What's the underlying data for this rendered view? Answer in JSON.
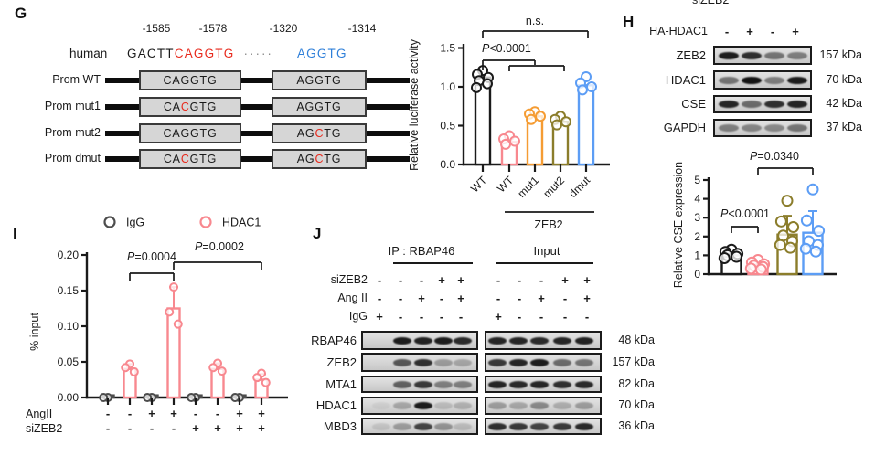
{
  "figure": {
    "panel_g": {
      "label": "G",
      "diagram": {
        "positions": [
          "-1585",
          "-1578",
          "-1320",
          "-1314"
        ],
        "species_label": "human",
        "sequence_segments": [
          {
            "text": "GACTT",
            "color": "#1a1a1a"
          },
          {
            "text": "CAGGTG",
            "color": "#e8291c"
          },
          {
            "text": "·····",
            "color": "#8a8a8a"
          },
          {
            "text": "AGGTG",
            "color": "#2e7fd9"
          }
        ],
        "mut_color": "#e8291c",
        "rows": [
          {
            "label": "Prom WT",
            "box1": [
              {
                "t": "CAGGTG",
                "red": false
              }
            ],
            "box2": [
              {
                "t": "AGGTG",
                "red": false
              }
            ]
          },
          {
            "label": "Prom mut1",
            "box1": [
              {
                "t": "CA",
                "red": false
              },
              {
                "t": "C",
                "red": true
              },
              {
                "t": "GTG",
                "red": false
              }
            ],
            "box2": [
              {
                "t": "AGGTG",
                "red": false
              }
            ]
          },
          {
            "label": "Prom mut2",
            "box1": [
              {
                "t": "CAGGTG",
                "red": false
              }
            ],
            "box2": [
              {
                "t": "AG",
                "red": false
              },
              {
                "t": "C",
                "red": true
              },
              {
                "t": "TG",
                "red": false
              }
            ]
          },
          {
            "label": "Prom dmut",
            "box1": [
              {
                "t": "CA",
                "red": false
              },
              {
                "t": "C",
                "red": true
              },
              {
                "t": "GTG",
                "red": false
              }
            ],
            "box2": [
              {
                "t": "AG",
                "red": false
              },
              {
                "t": "C",
                "red": true
              },
              {
                "t": "TG",
                "red": false
              }
            ]
          }
        ]
      }
    },
    "panel_h": {
      "label": "H",
      "clipped_top_label": "siZEB2",
      "condition_label": "HA-HDAC1",
      "condition_signs": [
        "-",
        "+",
        "-",
        "+"
      ],
      "blot_rows": [
        {
          "protein": "ZEB2",
          "kda": "157 kDa",
          "bands": [
            0.95,
            0.85,
            0.5,
            0.45
          ]
        },
        {
          "protein": "HDAC1",
          "kda": "70 kDa",
          "bands": [
            0.5,
            1.0,
            0.45,
            0.95
          ]
        },
        {
          "protein": "CSE",
          "kda": "42 kDa",
          "bands": [
            0.9,
            0.55,
            0.85,
            0.9
          ]
        },
        {
          "protein": "GAPDH",
          "kda": "37 kDa",
          "bands": [
            0.45,
            0.42,
            0.4,
            0.5
          ]
        }
      ]
    },
    "panel_i": {
      "label": "I"
    },
    "panel_j": {
      "label": "J",
      "ip_header": "IP : RBAP46",
      "input_header": "Input",
      "sign_rows": [
        {
          "label": "siZEB2",
          "ip": [
            "-",
            "-",
            "-",
            "+",
            "+"
          ],
          "input": [
            "-",
            "-",
            "-",
            "+",
            "+"
          ]
        },
        {
          "label": "Ang II",
          "ip": [
            "-",
            "-",
            "+",
            "-",
            "+"
          ],
          "input": [
            "-",
            "-",
            "+",
            "-",
            "+"
          ]
        },
        {
          "label": "IgG",
          "ip": [
            "+",
            "-",
            "-",
            "-",
            "-"
          ],
          "input": [
            "+",
            "-",
            "-",
            "-",
            "-"
          ]
        }
      ],
      "blot_rows": [
        {
          "protein": "RBAP46",
          "kda": "48 kDa",
          "ip": [
            0,
            0.95,
            0.92,
            0.95,
            0.88
          ],
          "input": [
            0.9,
            0.9,
            0.88,
            0.9,
            0.92
          ]
        },
        {
          "protein": "ZEB2",
          "kda": "157 kDa",
          "ip": [
            0,
            0.65,
            0.85,
            0.3,
            0.25
          ],
          "input": [
            0.8,
            0.9,
            0.95,
            0.55,
            0.5
          ]
        },
        {
          "protein": "MTA1",
          "kda": "82 kDa",
          "ip": [
            0,
            0.6,
            0.8,
            0.45,
            0.45
          ],
          "input": [
            0.9,
            0.88,
            0.9,
            0.85,
            0.88
          ]
        },
        {
          "protein": "HDAC1",
          "kda": "70 kDa",
          "ip": [
            0.05,
            0.25,
            0.95,
            0.15,
            0.2
          ],
          "input": [
            0.3,
            0.25,
            0.4,
            0.22,
            0.3
          ]
        },
        {
          "protein": "MBD3",
          "kda": "36 kDa",
          "ip": [
            0.1,
            0.3,
            0.75,
            0.35,
            0.15
          ],
          "input": [
            0.85,
            0.8,
            0.75,
            0.8,
            0.88
          ]
        }
      ]
    }
  },
  "chart_data": [
    {
      "id": "luciferase",
      "type": "bar",
      "title": "",
      "ylabel": "Relative luciferase activity",
      "ylim": [
        0,
        1.5
      ],
      "yticks": [
        {
          "v": 0.0,
          "label": "0.0"
        },
        {
          "v": 0.5,
          "label": "0.5"
        },
        {
          "v": 1.0,
          "label": "1.0"
        },
        {
          "v": 1.5,
          "label": "1.5"
        }
      ],
      "categories": [
        "WT",
        "WT",
        "mut1",
        "mut2",
        "dmut"
      ],
      "group_label": "ZEB2",
      "group_span": [
        1,
        4
      ],
      "values": [
        1.12,
        0.29,
        0.62,
        0.55,
        1.02
      ],
      "errors": [
        0,
        0,
        0,
        0,
        0
      ],
      "colors": [
        "#1a1a1a",
        "#f8888f",
        "#f59c33",
        "#8b7d2b",
        "#5c9df5"
      ],
      "points": [
        [
          1.21,
          1.16,
          1.12,
          1.08,
          1.04,
          0.99
        ],
        [
          0.37,
          0.33,
          0.3,
          0.26
        ],
        [
          0.68,
          0.65,
          0.62,
          0.58
        ],
        [
          0.62,
          0.58,
          0.55,
          0.51
        ],
        [
          1.13,
          1.05,
          1.0,
          0.96
        ]
      ],
      "annotations": [
        {
          "text": "n.s.",
          "from": 0,
          "to": 4
        },
        {
          "text": "P<0.0001",
          "from": 0,
          "to": [
            1,
            3
          ]
        }
      ],
      "grid": false,
      "legend_position": "none"
    },
    {
      "id": "cse",
      "type": "bar",
      "title": "",
      "ylabel": "Relative CSE expression",
      "ylim": [
        0,
        5
      ],
      "yticks": [
        {
          "v": 0,
          "label": "0"
        },
        {
          "v": 1,
          "label": "1"
        },
        {
          "v": 2,
          "label": "2"
        },
        {
          "v": 3,
          "label": "3"
        },
        {
          "v": 4,
          "label": "4"
        },
        {
          "v": 5,
          "label": "5"
        }
      ],
      "categories": [
        "",
        "",
        "",
        ""
      ],
      "values": [
        1.0,
        0.45,
        2.1,
        2.2
      ],
      "errors": [
        0,
        0,
        1.0,
        1.15
      ],
      "colors": [
        "#1a1a1a",
        "#f8888f",
        "#8b7d2b",
        "#5c9df5"
      ],
      "points": [
        [
          1.3,
          1.18,
          1.08,
          1.0,
          0.92,
          0.85
        ],
        [
          0.75,
          0.62,
          0.53,
          0.45,
          0.38,
          0.3,
          0.24
        ],
        [
          3.9,
          2.8,
          2.5,
          2.05,
          1.75,
          1.55,
          1.4
        ],
        [
          4.5,
          2.85,
          2.3,
          1.75,
          1.55,
          1.35,
          1.2
        ]
      ],
      "annotations": [
        {
          "text": "P<0.0001",
          "from": 0,
          "to": 1
        },
        {
          "text": "P=0.0340",
          "from": 1,
          "to": 3
        }
      ],
      "grid": false,
      "legend_position": "none"
    },
    {
      "id": "chip",
      "type": "bar",
      "title": "",
      "ylabel": "% input",
      "ylim": [
        0,
        0.2
      ],
      "yticks": [
        {
          "v": 0.0,
          "label": "0.00"
        },
        {
          "v": 0.05,
          "label": "0.05"
        },
        {
          "v": 0.1,
          "label": "0.10"
        },
        {
          "v": 0.15,
          "label": "0.15"
        },
        {
          "v": 0.2,
          "label": "0.20"
        }
      ],
      "legend": [
        {
          "name": "IgG",
          "color": "#4d4d4d"
        },
        {
          "name": "HDAC1",
          "color": "#f8888f"
        }
      ],
      "values": [
        0.003,
        0.04,
        0.003,
        0.125,
        0.003,
        0.04,
        0.003,
        0.025
      ],
      "errors": [
        0,
        0.007,
        0,
        0.03,
        0,
        0.008,
        0,
        0.008
      ],
      "colors": [
        "#4d4d4d",
        "#f8888f",
        "#4d4d4d",
        "#f8888f",
        "#4d4d4d",
        "#f8888f",
        "#4d4d4d",
        "#f8888f"
      ],
      "points": [
        [
          0,
          0
        ],
        [
          0.047,
          0.042,
          0.036
        ],
        [
          0,
          0
        ],
        [
          0.155,
          0.12,
          0.103
        ],
        [
          0,
          0
        ],
        [
          0.048,
          0.042,
          0.037
        ],
        [
          0,
          0
        ],
        [
          0.034,
          0.028,
          0.021
        ]
      ],
      "sign_rows": [
        {
          "label": "AngII",
          "signs": [
            "-",
            "-",
            "+",
            "+",
            "-",
            "-",
            "+",
            "+"
          ]
        },
        {
          "label": "siZEB2",
          "signs": [
            "-",
            "-",
            "-",
            "-",
            "+",
            "+",
            "+",
            "+"
          ]
        }
      ],
      "annotations": [
        {
          "text": "P=0.0004",
          "from": 1,
          "to": 3
        },
        {
          "text": "P=0.0002",
          "from": 3,
          "to": 7
        }
      ],
      "grid": false,
      "legend_position": "top"
    }
  ]
}
